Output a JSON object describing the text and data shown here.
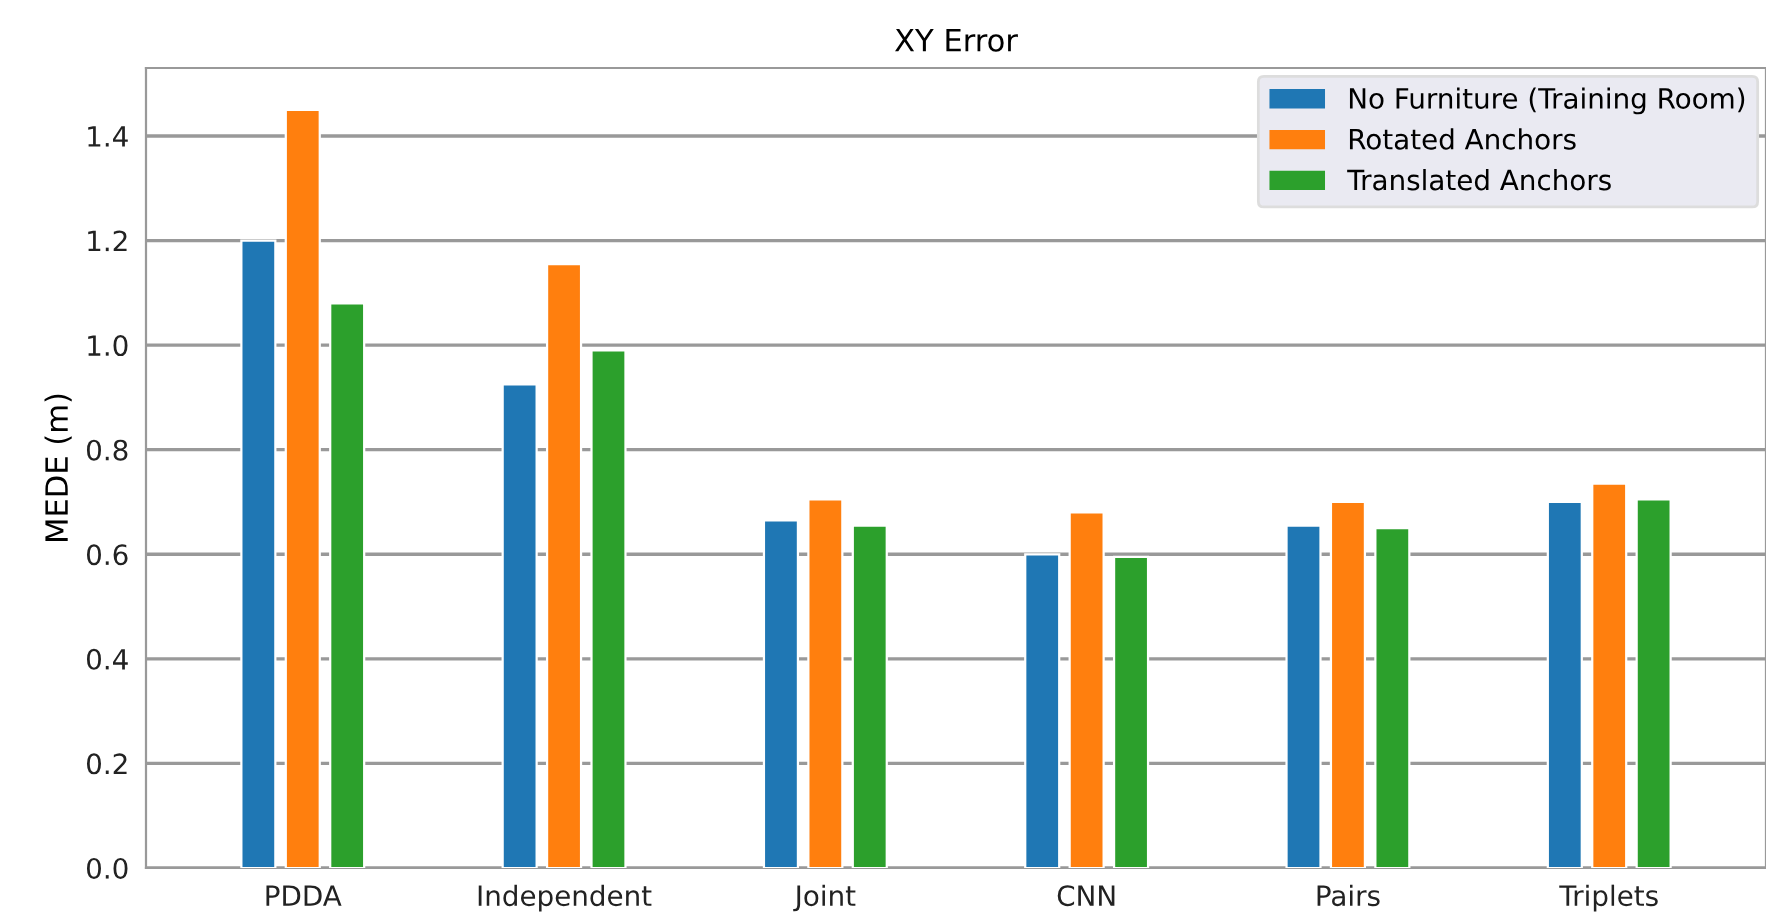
{
  "chart_data": {
    "type": "bar",
    "title": "XY Error",
    "ylabel": "MEDE (m)",
    "categories": [
      "PDDA",
      "Independent",
      "Joint",
      "CNN",
      "Pairs",
      "Triplets"
    ],
    "series": [
      {
        "name": "No Furniture (Training Room)",
        "color": "#1f77b4",
        "values": [
          1.2,
          0.925,
          0.665,
          0.6,
          0.655,
          0.7
        ]
      },
      {
        "name": "Rotated Anchors",
        "color": "#ff7f0e",
        "values": [
          1.45,
          1.155,
          0.705,
          0.68,
          0.7,
          0.735
        ]
      },
      {
        "name": "Translated Anchors",
        "color": "#2ca02c",
        "values": [
          1.08,
          0.99,
          0.655,
          0.595,
          0.65,
          0.705
        ]
      }
    ],
    "ylim": [
      0,
      1.53
    ],
    "yticks": [
      {
        "value": 0,
        "label": "0.0"
      },
      {
        "value": 0.2,
        "label": "0.2"
      },
      {
        "value": 0.4,
        "label": "0.4"
      },
      {
        "value": 0.6,
        "label": "0.6"
      },
      {
        "value": 0.8,
        "label": "0.8"
      },
      {
        "value": 1.0,
        "label": "1.0"
      },
      {
        "value": 1.2,
        "label": "1.2"
      },
      {
        "value": 1.4,
        "label": "1.4"
      }
    ],
    "grid": "y",
    "legend": "top right"
  }
}
